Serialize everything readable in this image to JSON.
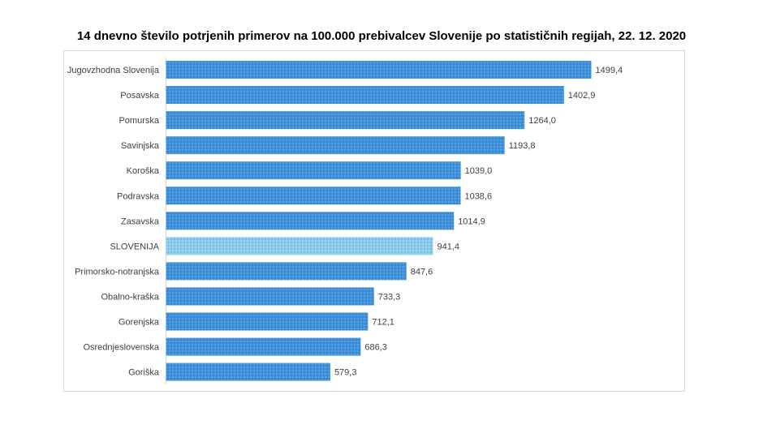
{
  "chart_data": {
    "type": "bar",
    "orientation": "horizontal",
    "title": "14 dnevno število potrjenih primerov na 100.000 prebivalcev Slovenije po statističnih regijah, 22. 12. 2020",
    "categories": [
      "Jugovzhodna Slovenija",
      "Posavska",
      "Pomurska",
      "Savinjska",
      "Koroška",
      "Podravska",
      "Zasavska",
      "SLOVENIJA",
      "Primorsko-notranjska",
      "Obalno-kraška",
      "Gorenjska",
      "Osrednjeslovenska",
      "Goriška"
    ],
    "values": [
      1499.4,
      1402.9,
      1264.0,
      1193.8,
      1039.0,
      1038.6,
      1014.9,
      941.4,
      847.6,
      733.3,
      712.1,
      686.3,
      579.3
    ],
    "labels": [
      "1499,4",
      "1402,9",
      "1264,0",
      "1193,8",
      "1039,0",
      "1038,6",
      "1014,9",
      "941,4",
      "847,6",
      "733,3",
      "712,1",
      "686,3",
      "579,3"
    ],
    "xlim": [
      0,
      1500
    ],
    "grid": false,
    "legend": "none",
    "colors": {
      "bar": "#3d8fd9",
      "highlight": "#8ccbea",
      "highlight_category": "SLOVENIJA"
    }
  }
}
